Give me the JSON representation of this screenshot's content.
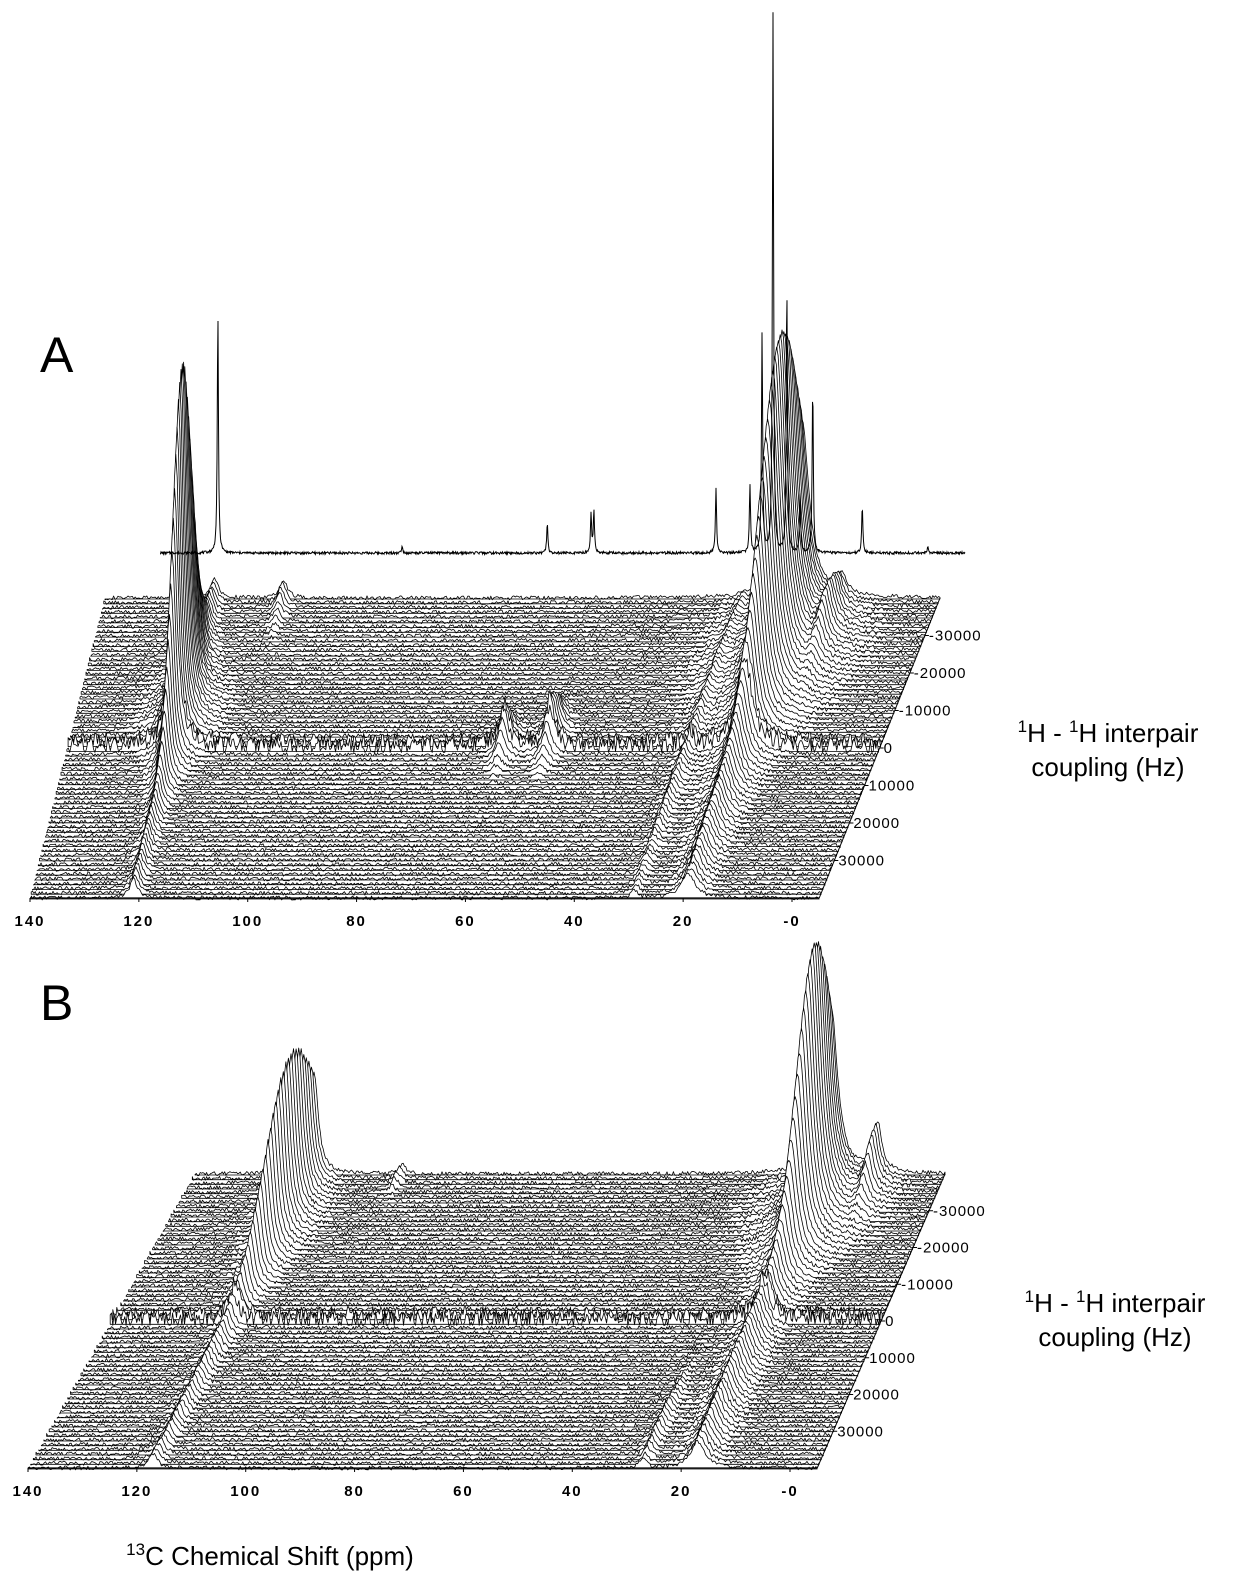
{
  "chart_data": [
    {
      "type": "waterfall",
      "panel_label": "A",
      "xlim": [
        140,
        -5
      ],
      "xticks": [
        140,
        120,
        100,
        80,
        60,
        40,
        20,
        {
          "value": 0,
          "label": "-0"
        }
      ],
      "ylim": [
        -40000,
        40000
      ],
      "yticks": [
        -30000,
        -20000,
        -10000,
        0,
        10000,
        20000,
        30000
      ],
      "ylabel": {
        "sup1": "1",
        "text1": "H - ",
        "sup2": "1",
        "text2": "H interpair",
        "line2": "coupling (Hz)"
      },
      "color": "#000000",
      "peaks": [
        {
          "ppm": 121,
          "coupling": -8000,
          "spread": 9000,
          "height": 330,
          "width": 0.8
        },
        {
          "ppm": 121,
          "coupling": 0,
          "spread": 60000,
          "height": 25,
          "width": 0.8
        },
        {
          "ppm": 109,
          "coupling": -38000,
          "spread": 5000,
          "height": 20,
          "width": 0.8
        },
        {
          "ppm": 62,
          "coupling": 0,
          "spread": 4000,
          "height": 40,
          "width": 1
        },
        {
          "ppm": 54,
          "coupling": -2000,
          "spread": 5000,
          "height": 45,
          "width": 1
        },
        {
          "ppm": 29,
          "coupling": 5000,
          "spread": 30000,
          "height": 15,
          "width": 0.8
        },
        {
          "ppm": 19,
          "coupling": -25000,
          "spread": 14000,
          "height": 300,
          "width": 1.5
        },
        {
          "ppm": 19,
          "coupling": 10000,
          "spread": 30000,
          "height": 40,
          "width": 1.5
        },
        {
          "ppm": 12,
          "coupling": -30000,
          "spread": 8000,
          "height": 40,
          "width": 1
        }
      ],
      "reference_spectrum": {
        "peaks": [
          {
            "ppm": 120.4,
            "height": 240
          },
          {
            "ppm": 88.4,
            "height": 8
          },
          {
            "ppm": 63.2,
            "height": 30
          },
          {
            "ppm": 55.6,
            "height": 38
          },
          {
            "ppm": 55.1,
            "height": 43
          },
          {
            "ppm": 33.9,
            "height": 65
          },
          {
            "ppm": 28.0,
            "height": 68
          },
          {
            "ppm": 25.9,
            "height": 220
          },
          {
            "ppm": 24.0,
            "height": 538
          },
          {
            "ppm": 21.6,
            "height": 268
          },
          {
            "ppm": 19.3,
            "height": 58
          },
          {
            "ppm": 17.1,
            "height": 168
          },
          {
            "ppm": 8.5,
            "height": 48
          },
          {
            "ppm": -2.9,
            "height": 6
          }
        ]
      }
    },
    {
      "type": "waterfall",
      "panel_label": "B",
      "xlim": [
        140,
        -5
      ],
      "xticks": [
        140,
        120,
        100,
        80,
        60,
        40,
        20,
        {
          "value": 0,
          "label": "-0"
        }
      ],
      "ylim": [
        -40000,
        40000
      ],
      "yticks": [
        -30000,
        -20000,
        -10000,
        0,
        10000,
        20000,
        30000
      ],
      "ylabel": {
        "sup1": "1",
        "text1": "H - ",
        "sup2": "1",
        "text2": "H interpair",
        "line2": "coupling (Hz)"
      },
      "color": "#000000",
      "peaks": [
        {
          "ppm": 117,
          "coupling": -28000,
          "spread": 12000,
          "height": 150,
          "width": 1
        },
        {
          "ppm": 117,
          "coupling": 5000,
          "spread": 40000,
          "height": 20,
          "width": 1
        },
        {
          "ppm": 100,
          "coupling": -38000,
          "spread": 3000,
          "height": 12,
          "width": 0.8
        },
        {
          "ppm": 17,
          "coupling": -30000,
          "spread": 10000,
          "height": 240,
          "width": 1.5
        },
        {
          "ppm": 17,
          "coupling": 5000,
          "spread": 40000,
          "height": 40,
          "width": 1.5
        },
        {
          "ppm": 8,
          "coupling": -38000,
          "spread": 6000,
          "height": 50,
          "width": 1
        },
        {
          "ppm": 27,
          "coupling": 30000,
          "spread": 10000,
          "height": 15,
          "width": 0.8
        }
      ]
    }
  ],
  "xlabel": {
    "sup": "13",
    "text": "C Chemical Shift (ppm)"
  }
}
